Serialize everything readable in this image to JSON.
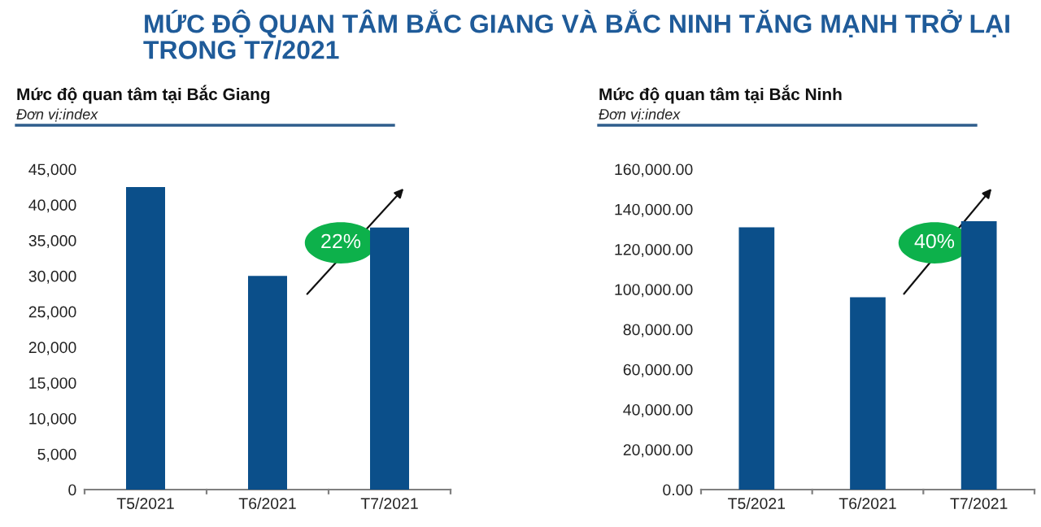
{
  "chart_data": [
    {
      "type": "bar",
      "title": "Mức độ quan tâm tại Bắc Giang",
      "subtitle": "Đơn vị:index",
      "annotations": [
        "MỨC ĐỘ QUAN TÂM BẮC GIANG VÀ BẮC NINH TĂNG MẠNH TRỞ LẠI\nTRONG T7/2021",
        "22%"
      ],
      "categories": [
        "T5/2021",
        "T6/2021",
        "T7/2021"
      ],
      "values": [
        42500,
        30000,
        36800
      ],
      "color": "#0b4f8a",
      "ylim": [
        0,
        45000
      ],
      "yticks": [
        {
          "value": 0,
          "label": "0"
        },
        {
          "value": 5000,
          "label": "5,000"
        },
        {
          "value": 10000,
          "label": "10,000"
        },
        {
          "value": 15000,
          "label": "15,000"
        },
        {
          "value": 20000,
          "label": "20,000"
        },
        {
          "value": 25000,
          "label": "25,000"
        },
        {
          "value": 30000,
          "label": "30,000"
        },
        {
          "value": 35000,
          "label": "35,000"
        },
        {
          "value": 40000,
          "label": "40,000"
        },
        {
          "value": 45000,
          "label": "45,000"
        }
      ],
      "grid": false
    },
    {
      "type": "bar",
      "title": "Mức độ quan tâm tại Bắc Ninh",
      "subtitle": "Đơn vị:index",
      "annotations": [
        "40%"
      ],
      "categories": [
        "T5/2021",
        "T6/2021",
        "T7/2021"
      ],
      "values": [
        131000,
        96000,
        134000
      ],
      "color": "#0b4f8a",
      "ylim": [
        0,
        160000
      ],
      "yticks": [
        {
          "value": 0,
          "label": "0.00"
        },
        {
          "value": 20000,
          "label": "20,000.00"
        },
        {
          "value": 40000,
          "label": "40,000.00"
        },
        {
          "value": 60000,
          "label": "60,000.00"
        },
        {
          "value": 80000,
          "label": "80,000.00"
        },
        {
          "value": 100000,
          "label": "100,000.00"
        },
        {
          "value": 120000,
          "label": "120,000.00"
        },
        {
          "value": 140000,
          "label": "140,000.00"
        },
        {
          "value": 160000,
          "label": "160,000.00"
        }
      ],
      "grid": false
    }
  ]
}
